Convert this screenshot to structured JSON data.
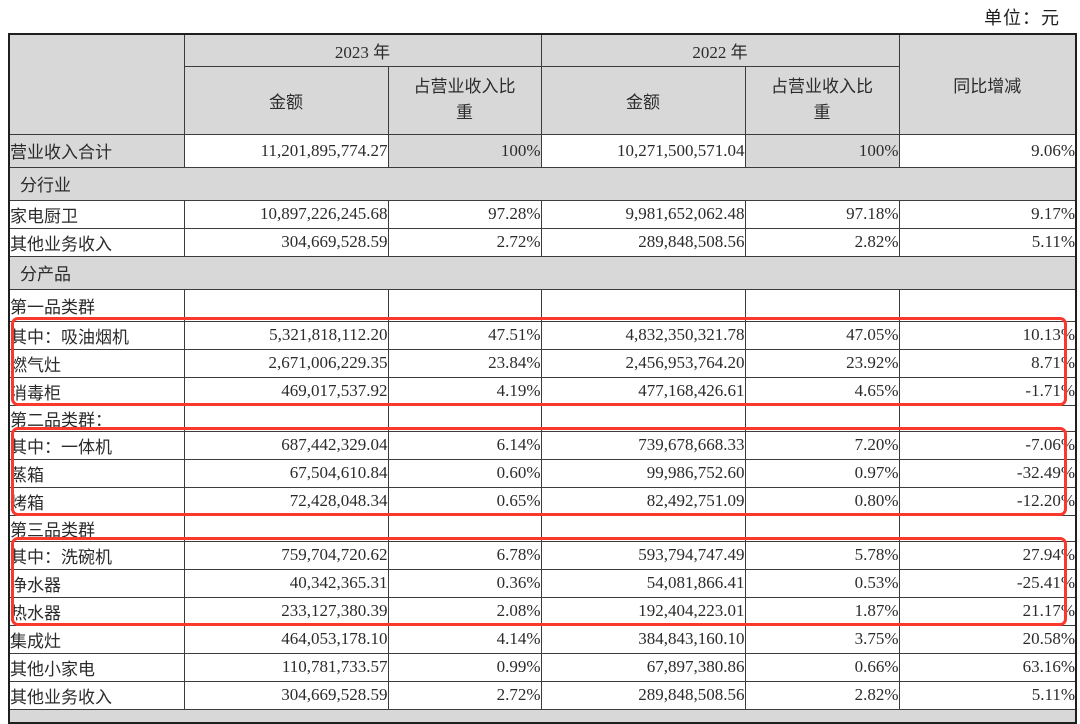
{
  "unit_label": "单位：元",
  "colors": {
    "section_grey": "#d8d8d8",
    "highlight_red": "#fa392c"
  },
  "table": {
    "header": {
      "year_2023": "2023 年",
      "year_2022": "2022 年",
      "amount": "金额",
      "pct_of_revenue": "占营业收入比重",
      "yoy_change": "同比增减"
    },
    "rows": [
      {
        "variant": "total",
        "label": "营业收入合计",
        "a23": "11,201,895,774.27",
        "p23": "100%",
        "a22": "10,271,500,571.04",
        "p22": "100%",
        "yoy": "9.06%"
      },
      {
        "variant": "section",
        "label": "分行业"
      },
      {
        "variant": "data",
        "label": "家电厨卫",
        "a23": "10,897,226,245.68",
        "p23": "97.28%",
        "a22": "9,981,652,062.48",
        "p22": "97.18%",
        "yoy": "9.17%"
      },
      {
        "variant": "data",
        "label": "其他业务收入",
        "a23": "304,669,528.59",
        "p23": "2.72%",
        "a22": "289,848,508.56",
        "p22": "2.82%",
        "yoy": "5.11%"
      },
      {
        "variant": "section",
        "label": "分产品"
      },
      {
        "variant": "group",
        "label": "第一品类群",
        "a23": "",
        "p23": "",
        "a22": "",
        "p22": "",
        "yoy": ""
      },
      {
        "variant": "data",
        "label": "其中：吸油烟机",
        "a23": "5,321,818,112.20",
        "p23": "47.51%",
        "a22": "4,832,350,321.78",
        "p22": "47.05%",
        "yoy": "10.13%"
      },
      {
        "variant": "data",
        "indent": true,
        "label": "燃气灶",
        "a23": "2,671,006,229.35",
        "p23": "23.84%",
        "a22": "2,456,953,764.20",
        "p22": "23.92%",
        "yoy": "8.71%"
      },
      {
        "variant": "data",
        "indent": true,
        "label": "消毒柜",
        "a23": "469,017,537.92",
        "p23": "4.19%",
        "a22": "477,168,426.61",
        "p22": "4.65%",
        "yoy": "-1.71%"
      },
      {
        "variant": "group-sm",
        "label": "第二品类群：",
        "a23": "",
        "p23": "",
        "a22": "",
        "p22": "",
        "yoy": ""
      },
      {
        "variant": "data",
        "label": "其中：一体机",
        "a23": "687,442,329.04",
        "p23": "6.14%",
        "a22": "739,678,668.33",
        "p22": "7.20%",
        "yoy": "-7.06%"
      },
      {
        "variant": "data",
        "indent": true,
        "label": "蒸箱",
        "a23": "67,504,610.84",
        "p23": "0.60%",
        "a22": "99,986,752.60",
        "p22": "0.97%",
        "yoy": "-32.49%"
      },
      {
        "variant": "data",
        "indent": true,
        "label": "烤箱",
        "a23": "72,428,048.34",
        "p23": "0.65%",
        "a22": "82,492,751.09",
        "p22": "0.80%",
        "yoy": "-12.20%"
      },
      {
        "variant": "group-sm",
        "label": "第三品类群",
        "a23": "",
        "p23": "",
        "a22": "",
        "p22": "",
        "yoy": ""
      },
      {
        "variant": "data",
        "label": "其中：洗碗机",
        "a23": "759,704,720.62",
        "p23": "6.78%",
        "a22": "593,794,747.49",
        "p22": "5.78%",
        "yoy": "27.94%"
      },
      {
        "variant": "data",
        "indent": true,
        "label": "净水器",
        "a23": "40,342,365.31",
        "p23": "0.36%",
        "a22": "54,081,866.41",
        "p22": "0.53%",
        "yoy": "-25.41%"
      },
      {
        "variant": "data",
        "indent": true,
        "label": "热水器",
        "a23": "233,127,380.39",
        "p23": "2.08%",
        "a22": "192,404,223.01",
        "p22": "1.87%",
        "yoy": "21.17%"
      },
      {
        "variant": "data",
        "label": "集成灶",
        "a23": "464,053,178.10",
        "p23": "4.14%",
        "a22": "384,843,160.10",
        "p22": "3.75%",
        "yoy": "20.58%"
      },
      {
        "variant": "data",
        "label": "其他小家电",
        "a23": "110,781,733.57",
        "p23": "0.99%",
        "a22": "67,897,380.86",
        "p22": "0.66%",
        "yoy": "63.16%"
      },
      {
        "variant": "data",
        "label": "其他业务收入",
        "a23": "304,669,528.59",
        "p23": "2.72%",
        "a22": "289,848,508.56",
        "p22": "2.82%",
        "yoy": "5.11%"
      },
      {
        "variant": "partial",
        "label": ""
      }
    ]
  }
}
